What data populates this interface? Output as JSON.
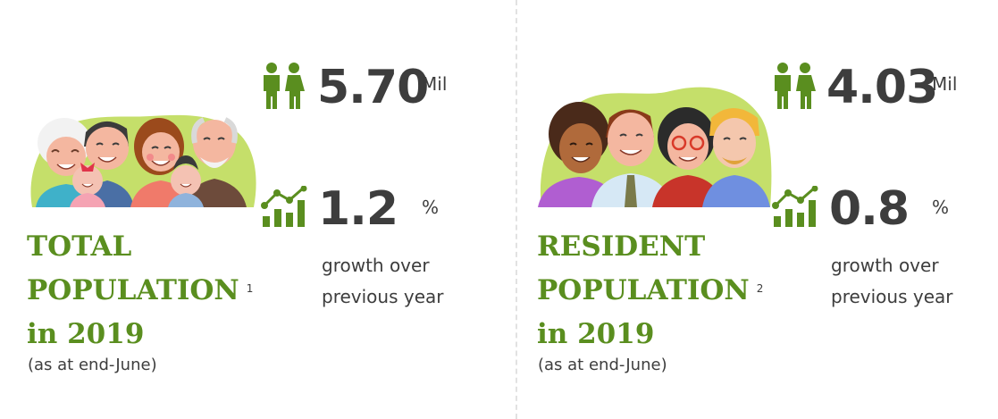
{
  "colors": {
    "accent_green": "#5a8e1f",
    "text": "#3d3d3d",
    "divider": "#e2e2e2"
  },
  "total": {
    "title_lines": [
      "TOTAL",
      "POPULATION",
      "in 2019"
    ],
    "footnote": "1",
    "note": "(as at end-June)",
    "population_value": "5.70",
    "population_unit": "Mil",
    "growth_value": "1.2",
    "growth_unit": "%",
    "growth_caption_lines": [
      "growth over",
      "previous year"
    ],
    "illustration": "family-illustration",
    "population_icon": "people-icon",
    "growth_icon": "growth-chart-icon"
  },
  "resident": {
    "title_lines": [
      "RESIDENT",
      "POPULATION",
      "in 2019"
    ],
    "footnote": "2",
    "note": "(as at end-June)",
    "population_value": "4.03",
    "population_unit": "Mil",
    "growth_value": "0.8",
    "growth_unit": "%",
    "growth_caption_lines": [
      "growth over",
      "previous year"
    ],
    "illustration": "residents-illustration",
    "population_icon": "people-icon",
    "growth_icon": "growth-chart-icon"
  }
}
